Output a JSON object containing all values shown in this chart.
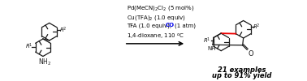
{
  "background_color": "#ffffff",
  "co_color": "#0000ee",
  "lc": "#1a1a1a",
  "lw": 0.9,
  "red_color": "#ee0000",
  "figsize": [
    3.78,
    1.0
  ],
  "dpi": 100,
  "ring_r": 11,
  "text_conditions": [
    "Pd(MeCN)$_2$Cl$_2$ (5 mol%)",
    "Cu(TFA)$_2$ (1.0 equiv)",
    "1,4-dioxane, 110 °C"
  ],
  "tfa_line": "TFA (1.0 equiv), ",
  "co_word": "CO",
  "co_suffix": " (1 atm)",
  "yield_line1": "21 examples",
  "yield_line2": "up to 91% yield"
}
